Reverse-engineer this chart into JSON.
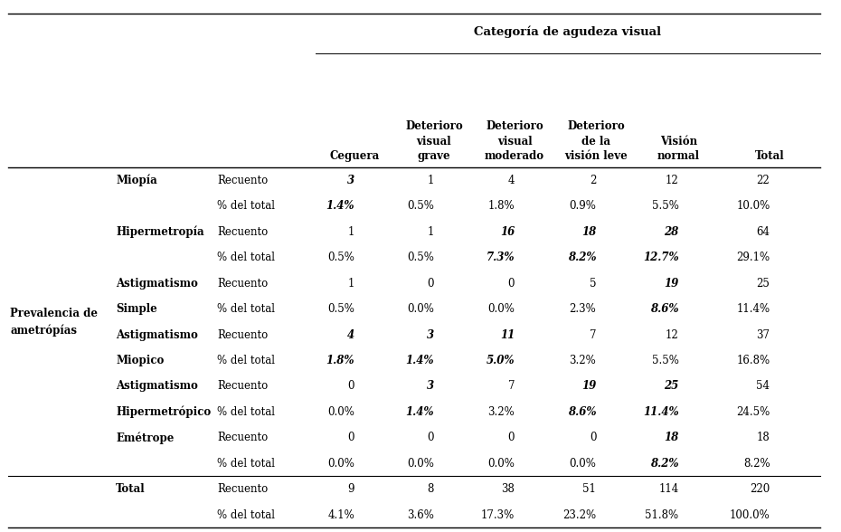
{
  "title": "Categoría de agudeza visual",
  "col1_label": "Prevalencia de\nametrópías",
  "rows": [
    {
      "label2": "Miopía",
      "label3": "Recuento",
      "vals": [
        "3",
        "1",
        "4",
        "2",
        "12",
        "22"
      ],
      "bold": [
        0
      ]
    },
    {
      "label2": "",
      "label3": "% del total",
      "vals": [
        "1.4%",
        "0.5%",
        "1.8%",
        "0.9%",
        "5.5%",
        "10.0%"
      ],
      "bold": [
        0
      ]
    },
    {
      "label2": "Hipermetropía",
      "label3": "Recuento",
      "vals": [
        "1",
        "1",
        "16",
        "18",
        "28",
        "64"
      ],
      "bold": [
        2,
        3,
        4
      ]
    },
    {
      "label2": "",
      "label3": "% del total",
      "vals": [
        "0.5%",
        "0.5%",
        "7.3%",
        "8.2%",
        "12.7%",
        "29.1%"
      ],
      "bold": [
        2,
        3,
        4
      ]
    },
    {
      "label2": "Astigmatismo",
      "label3": "Recuento",
      "vals": [
        "1",
        "0",
        "0",
        "5",
        "19",
        "25"
      ],
      "bold": [
        4
      ]
    },
    {
      "label2": "Simple",
      "label3": "% del total",
      "vals": [
        "0.5%",
        "0.0%",
        "0.0%",
        "2.3%",
        "8.6%",
        "11.4%"
      ],
      "bold": [
        4
      ]
    },
    {
      "label2": "Astigmatismo",
      "label3": "Recuento",
      "vals": [
        "4",
        "3",
        "11",
        "7",
        "12",
        "37"
      ],
      "bold": [
        0,
        1,
        2
      ]
    },
    {
      "label2": "Miopico",
      "label3": "% del total",
      "vals": [
        "1.8%",
        "1.4%",
        "5.0%",
        "3.2%",
        "5.5%",
        "16.8%"
      ],
      "bold": [
        0,
        1,
        2
      ]
    },
    {
      "label2": "Astigmatismo",
      "label3": "Recuento",
      "vals": [
        "0",
        "3",
        "7",
        "19",
        "25",
        "54"
      ],
      "bold": [
        1,
        3,
        4
      ]
    },
    {
      "label2": "Hipermetrópico",
      "label3": "% del total",
      "vals": [
        "0.0%",
        "1.4%",
        "3.2%",
        "8.6%",
        "11.4%",
        "24.5%"
      ],
      "bold": [
        1,
        3,
        4
      ]
    },
    {
      "label2": "Emétrope",
      "label3": "Recuento",
      "vals": [
        "0",
        "0",
        "0",
        "0",
        "18",
        "18"
      ],
      "bold": [
        4
      ]
    },
    {
      "label2": "",
      "label3": "% del total",
      "vals": [
        "0.0%",
        "0.0%",
        "0.0%",
        "0.0%",
        "8.2%",
        "8.2%"
      ],
      "bold": [
        4
      ]
    },
    {
      "label2": "Total",
      "label3": "Recuento",
      "vals": [
        "9",
        "8",
        "38",
        "51",
        "114",
        "220"
      ],
      "bold": []
    },
    {
      "label2": "",
      "label3": "% del total",
      "vals": [
        "4.1%",
        "3.6%",
        "17.3%",
        "23.2%",
        "51.8%",
        "100.0%"
      ],
      "bold": []
    }
  ],
  "col_headers_bold": [
    "Ceguera",
    "Deterioro\nvisual\ngrave",
    "Deterioro\nvisual\nmoderado",
    "Deterioro\nde la\nvisión leve",
    "Visión\nnormal",
    "Total"
  ],
  "bold_label2": [
    "Miopía",
    "Hipermetropía",
    "Astigmatismo",
    "Simple",
    "Miopico",
    "Hipermetrópico",
    "Emétrope",
    "Total"
  ]
}
